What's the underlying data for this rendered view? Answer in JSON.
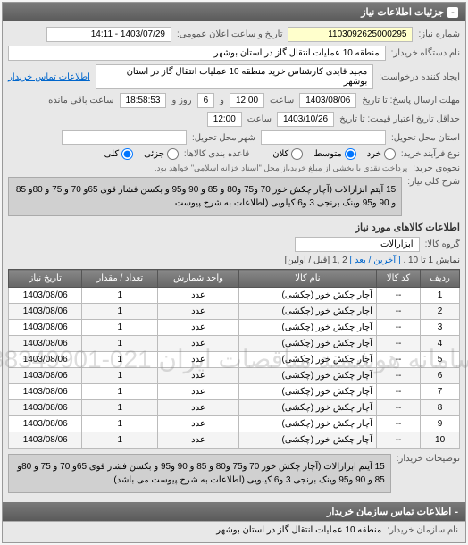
{
  "header": {
    "title": "جزئیات اطلاعات نیاز",
    "minus": "-"
  },
  "fields": {
    "req_num_lbl": "شماره نیاز:",
    "req_num": "1103092625000295",
    "announce_lbl": "تاریخ و ساعت اعلان عمومی:",
    "announce_val": "1403/07/29 - 14:11",
    "buyer_lbl": "نام دستگاه خریدار:",
    "buyer_val": "منطقه 10 عملیات انتقال گاز در استان بوشهر",
    "requester_lbl": "ایجاد کننده درخواست:",
    "requester_val": "مجید قایدی کارشناس خرید منطقه 10 عملیات انتقال گاز در استان بوشهر",
    "contact_link": "اطلاعات تماس خریدار",
    "deadline_lbl": "مهلت ارسال پاسخ: تا تاریخ",
    "deadline_date": "1403/08/06",
    "time_lbl": "ساعت",
    "deadline_time": "12:00",
    "and_lbl": "و",
    "days_remain": "6",
    "days_lbl": "روز و",
    "time_remain": "18:58:53",
    "time_remain_lbl": "ساعت باقی مانده",
    "validity_lbl": "حداقل تاریخ اعتبار قیمت: تا تاریخ",
    "validity_date": "1403/10/26",
    "validity_time": "12:00",
    "delivery_lbl": "استان محل تحویل:",
    "city_lbl": "شهر محل تحویل:",
    "agree_lbl": "نوع فرآیند خرید:",
    "pack_lbl": "قاعده بندی کالاها:",
    "radio_low": "خرد",
    "radio_mid": "متوسط",
    "radio_high": "کلان",
    "radio_part": "جزئی",
    "radio_whole": "کلی",
    "payment_lbl": "نحوه‌ی خرید:",
    "payment_note": "پرداخت نقدی با بخشی از مبلغ خرید،از محل \"اسناد خزانه اسلامی\" خواهد بود.",
    "desc_lbl": "شرح کلی نیاز:",
    "desc_text": "15 آیتم ابزارالات (آچار چکش خور 70 و75 و80 و 85 و 90 و95 و بکسن فشار قوی 65و 70 و 75 و 80و 85 و 90 و95 وینک برنجی 3 و6 کیلویی (اطلاعات به شرح پیوست"
  },
  "goods": {
    "section_title": "اطلاعات کالاهای مورد نیاز",
    "group_lbl": "گروه کالا:",
    "group_val": "ابزارالات",
    "pager_text": "نمایش 1 تا 10 .",
    "pager_last": "[ آخرین",
    "pager_next": "/ بعد ]",
    "pager_nums": "2 ,1",
    "pager_first": "[قبل / اولین]",
    "cols": {
      "row": "ردیف",
      "code": "کد کالا",
      "name": "نام کالا",
      "unit": "واحد شمارش",
      "qty": "تعداد / مقدار",
      "date": "تاریخ نیاز"
    },
    "rows": [
      {
        "r": "1",
        "code": "--",
        "name": "آچار چکش خور (چکشی)",
        "unit": "عدد",
        "qty": "1",
        "date": "1403/08/06"
      },
      {
        "r": "2",
        "code": "--",
        "name": "آچار چکش خور (چکشی)",
        "unit": "عدد",
        "qty": "1",
        "date": "1403/08/06"
      },
      {
        "r": "3",
        "code": "--",
        "name": "آچار چکش خور (چکشی)",
        "unit": "عدد",
        "qty": "1",
        "date": "1403/08/06"
      },
      {
        "r": "4",
        "code": "--",
        "name": "آچار چکش خور (چکشی)",
        "unit": "عدد",
        "qty": "1",
        "date": "1403/08/06"
      },
      {
        "r": "5",
        "code": "--",
        "name": "آچار چکش خور (چکشی)",
        "unit": "عدد",
        "qty": "1",
        "date": "1403/08/06"
      },
      {
        "r": "6",
        "code": "--",
        "name": "آچار چکش خور (چکشی)",
        "unit": "عدد",
        "qty": "1",
        "date": "1403/08/06"
      },
      {
        "r": "7",
        "code": "--",
        "name": "آچار چکش خور (چکشی)",
        "unit": "عدد",
        "qty": "1",
        "date": "1403/08/06"
      },
      {
        "r": "8",
        "code": "--",
        "name": "آچار چکش خور (چکشی)",
        "unit": "عدد",
        "qty": "1",
        "date": "1403/08/06"
      },
      {
        "r": "9",
        "code": "--",
        "name": "آچار چکش خور (چکشی)",
        "unit": "عدد",
        "qty": "1",
        "date": "1403/08/06"
      },
      {
        "r": "10",
        "code": "--",
        "name": "آچار چکش خور (چکشی)",
        "unit": "عدد",
        "qty": "1",
        "date": "1403/08/06"
      }
    ],
    "watermark": "سامانه هوشمند مناقصات ایران\n021-88349901"
  },
  "notes": {
    "lbl": "توضیحات خریدار:",
    "text": "15 آیتم ابزارالات (آچار چکش خور 70 و75 و80 و 85 و 90 و95 و بکسن فشار قوی 65و 70 و 75 و 80و 85 و 90 و95 وینک برنجی 3 و6 کیلویی (اطلاعات به شرح پیوست می باشد)"
  },
  "footer": {
    "title": "اطلاعات تماس سازمان خریدار",
    "minus": "-",
    "org_lbl": "نام سازمان خریدار:",
    "org_val": "منطقه 10 عملیات انتقال گاز در استان بوشهر"
  }
}
